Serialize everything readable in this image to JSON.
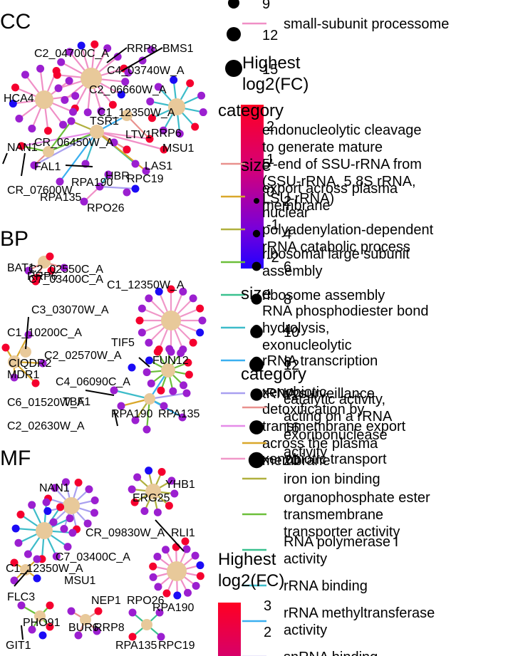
{
  "panels": [
    {
      "id": "CC",
      "title": "CC",
      "node_labels": [
        "C2_04700C_A",
        "RRP8",
        "BMS1",
        "C4_03740W_A",
        "C2_06660W_A",
        "HCA4",
        "C1_12350W_A",
        "TSR1",
        "RRP6",
        "LTV1",
        "MSU1",
        "NAN1",
        "CR_06450W_A",
        "FAL1",
        "LAS1",
        "HBR",
        "RPC19",
        "RPA190",
        "CR_07600W",
        "RPA135",
        "RPO26"
      ]
    },
    {
      "id": "BP",
      "title": "BP",
      "node_labels": [
        "BAT1",
        "C2_02550C_A",
        "RRP6",
        "C7_03400C_A",
        "C1_12350W_A",
        "C3_03070W_A",
        "C1_10200C_A",
        "TIF5",
        "C2_02570W_A",
        "CIQDR2",
        "FUN12",
        "MDR1",
        "C4_06090C_A",
        "C6_01520W_A",
        "TBF1",
        "RPA190",
        "RPA135",
        "C2_02630W_A"
      ]
    },
    {
      "id": "MF",
      "title": "MF",
      "node_labels": [
        "NAN1",
        "YHB1",
        "ERG25",
        "CR_09830W_A",
        "RLI1",
        "C7_03400C_A",
        "C1_12350W_A",
        "MSU1",
        "FLC3",
        "NEP1",
        "RPO26",
        "RPA190",
        "PHO91",
        "BUR6",
        "RRP8",
        "GIT1",
        "RPA135",
        "RPC19"
      ]
    }
  ],
  "legend_cc": {
    "size_title": "size",
    "size_values": [
      "9",
      "12",
      "15"
    ],
    "fc_title": "Highest log2(FC)",
    "fc_values": [
      "2",
      "1",
      "0",
      "-1",
      "-2"
    ],
    "category_title": "category",
    "categories": [
      {
        "label": "small-subunit processome",
        "color": "#f08fc6"
      },
      {
        "label": "endonucleolytic cleavage to generate mature 5'-end of SSU-rRNA from (SSU-rRNA, 5.8S rRNA, LSU-rRNA)",
        "color": "#e9918e"
      },
      {
        "label": "export across plasma membrane",
        "color": "#d9a82b"
      },
      {
        "label": "nuclear polyadenylation-dependent rRNA catabolic process",
        "color": "#b0b03e"
      },
      {
        "label": "ribosomal large subunit assembly",
        "color": "#6cbf3a"
      },
      {
        "label": "ribosome assembly",
        "color": "#3ac18f"
      },
      {
        "label": "RNA phosphodiester bond hydrolysis, exonucleolytic",
        "color": "#3dbcc9"
      },
      {
        "label": "rRNA transcription",
        "color": "#3aaff0"
      },
      {
        "label": "tRNA surveillance",
        "color": "#a9a0f0"
      },
      {
        "label": "xenobiotic detoxification by transmembrane export across the plasma membrane",
        "color": "#e58be8"
      },
      {
        "label": "xenobiotic transport",
        "color": "#f097c8"
      }
    ]
  },
  "legend_bp": {
    "size_title": "size",
    "size_values": [
      "4",
      "8",
      "12",
      "16",
      "20"
    ],
    "category_title": "category",
    "categories": [
      {
        "label": "catalytic activity, acting on a rRNA",
        "color": "#e9918e"
      },
      {
        "label": "exoribonuclease activity",
        "color": "#d9a82b"
      },
      {
        "label": "iron ion binding",
        "color": "#b0b03e"
      },
      {
        "label": "organophosphate ester transmembrane transporter activity",
        "color": "#6cbf3a"
      },
      {
        "label": "RNA polymerase I activity",
        "color": "#3ac18f"
      },
      {
        "label": "rRNA binding",
        "color": "#3dbcc9"
      },
      {
        "label": "rRNA methyltransferase activity",
        "color": "#3aaff0"
      },
      {
        "label": "snRNA binding",
        "color": "#a9a0f0"
      }
    ]
  },
  "legend_mf": {
    "size_title": "size",
    "size_values": [
      "2",
      "4",
      "6",
      "8",
      "10",
      "12"
    ],
    "fc_title": "Highest log2(FC)",
    "fc_values": [
      "3",
      "2"
    ]
  },
  "colors": {
    "gene_high": "#f5002e",
    "gene_mid": "#9b1fd0",
    "gene_low": "#1b0bf5",
    "category_node": "#e8c99a",
    "fc_gradient": [
      "#ff0022",
      "#cc0088",
      "#7a00d8",
      "#2200ff"
    ]
  }
}
